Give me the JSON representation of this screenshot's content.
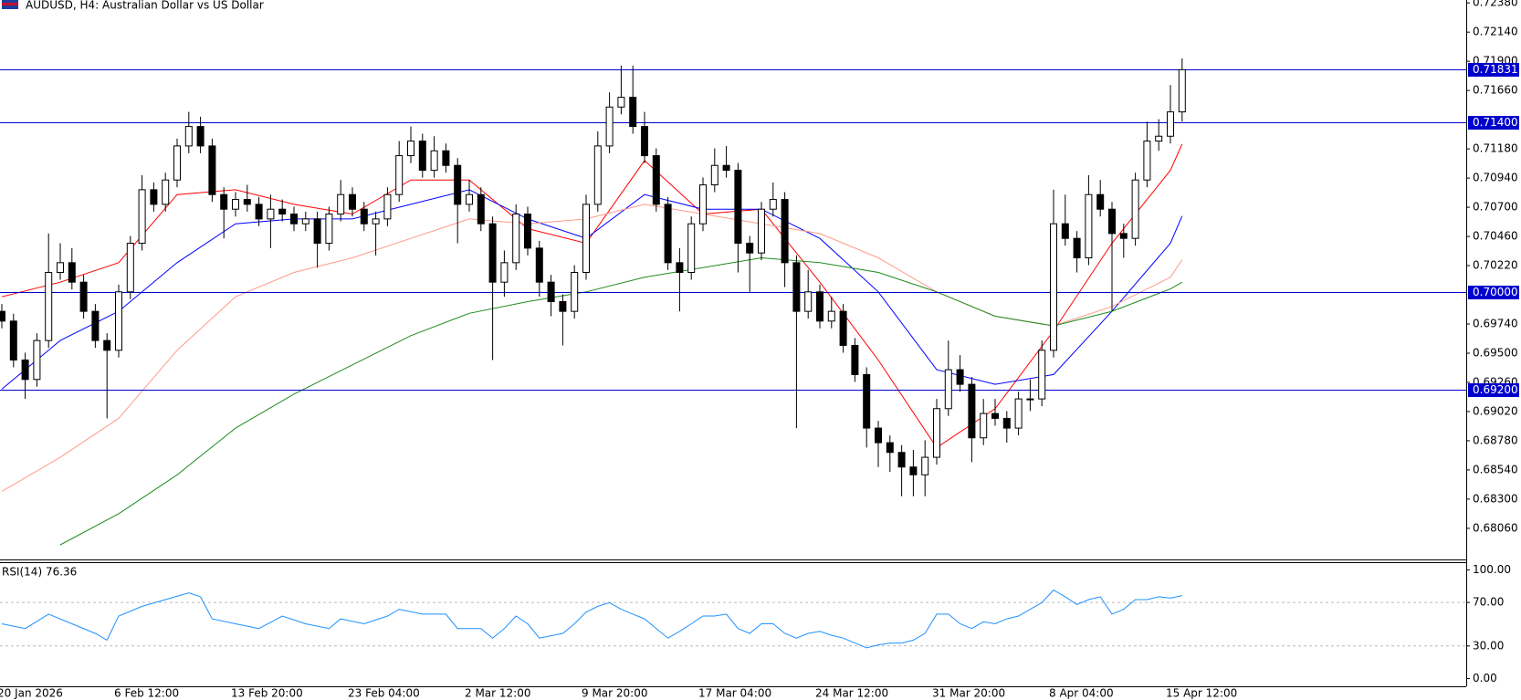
{
  "chart_data": [
    {
      "type": "candlestick",
      "title": "AUDUSD, H4:  Australian Dollar vs US Dollar",
      "categories": [
        "20 Jan 2026",
        null,
        null,
        null,
        null,
        null,
        null,
        null,
        null,
        null,
        "6 Feb 12:00",
        null,
        null,
        null,
        null,
        null,
        null,
        null,
        null,
        null,
        "13 Feb 20:00",
        null,
        null,
        null,
        null,
        null,
        null,
        null,
        null,
        null,
        "23 Feb 04:00",
        null,
        null,
        null,
        null,
        null,
        null,
        null,
        null,
        null,
        "2 Mar 12:00",
        null,
        null,
        null,
        null,
        null,
        null,
        null,
        null,
        null,
        "9 Mar 20:00",
        null,
        null,
        null,
        null,
        null,
        null,
        null,
        null,
        null,
        "17 Mar 04:00",
        null,
        null,
        null,
        null,
        null,
        null,
        null,
        null,
        null,
        "24 Mar 12:00",
        null,
        null,
        null,
        null,
        null,
        null,
        null,
        null,
        null,
        "31 Mar 20:00",
        null,
        null,
        null,
        null,
        null,
        null,
        null,
        null,
        null,
        "8 Apr 04:00",
        null,
        null,
        null,
        null,
        null,
        null,
        null,
        null,
        null,
        "15 Apr 12:00",
        null
      ],
      "open": [
        0.69844,
        0.69764,
        0.69444,
        0.69284,
        0.69604,
        0.70164,
        0.70244,
        0.70084,
        0.69844,
        0.69604,
        0.69524,
        0.70004,
        0.70404,
        0.70844,
        0.70724,
        0.70924,
        0.71204,
        0.71364,
        0.71204,
        0.70804,
        0.70684,
        0.70764,
        0.70724,
        0.70604,
        0.70684,
        0.70644,
        0.70564,
        0.70604,
        0.70404,
        0.70644,
        0.70804,
        0.70684,
        0.70564,
        0.70604,
        0.70804,
        0.71124,
        0.71244,
        0.71004,
        0.71164,
        0.71044,
        0.70724,
        0.70804,
        0.70564,
        0.70084,
        0.70244,
        0.70644,
        0.70364,
        0.70084,
        0.69924,
        0.69844,
        0.70164,
        0.70724,
        0.71204,
        0.71524,
        0.71604,
        0.71364,
        0.71124,
        0.70724,
        0.70244,
        0.70164,
        0.70564,
        0.70884,
        0.71044,
        0.71004,
        0.70404,
        0.70324,
        0.70684,
        0.70764,
        0.70244,
        0.69844,
        0.70004,
        0.69764,
        0.69844,
        0.69564,
        0.69324,
        0.68884,
        0.68764,
        0.68684,
        0.68564,
        0.685,
        0.68644,
        0.69044,
        0.69364,
        0.69244,
        0.68804,
        0.69004,
        0.68964,
        0.68884,
        0.69124,
        0.69124,
        0.69524,
        0.70564,
        0.70444,
        0.70284,
        0.70804,
        0.70684,
        0.70484,
        0.70444,
        0.70924,
        0.71244,
        0.71284,
        0.71484
      ],
      "high": [
        0.69904,
        0.69824,
        0.69504,
        0.69664,
        0.70484,
        0.70404,
        0.70364,
        0.70144,
        0.69904,
        0.69664,
        0.70064,
        0.70464,
        0.70964,
        0.70904,
        0.70984,
        0.71264,
        0.71484,
        0.71444,
        0.71264,
        0.70864,
        0.70824,
        0.70884,
        0.70784,
        0.70804,
        0.70764,
        0.70704,
        0.70664,
        0.70664,
        0.70704,
        0.70924,
        0.70864,
        0.70744,
        0.70664,
        0.70864,
        0.71244,
        0.71364,
        0.71304,
        0.71284,
        0.71224,
        0.71104,
        0.70924,
        0.70864,
        0.70624,
        0.70344,
        0.70724,
        0.70704,
        0.70424,
        0.70144,
        0.69984,
        0.70224,
        0.70804,
        0.71324,
        0.71644,
        0.71864,
        0.71864,
        0.71484,
        0.71184,
        0.70784,
        0.70364,
        0.70624,
        0.70944,
        0.71184,
        0.71204,
        0.71064,
        0.70464,
        0.70744,
        0.70904,
        0.70824,
        0.70304,
        0.70184,
        0.70064,
        0.69964,
        0.69904,
        0.69624,
        0.69384,
        0.68944,
        0.68824,
        0.68744,
        0.68704,
        0.68784,
        0.69124,
        0.69604,
        0.69484,
        0.69304,
        0.69124,
        0.69124,
        0.69024,
        0.69184,
        0.69284,
        0.69604,
        0.70844,
        0.70804,
        0.70504,
        0.70964,
        0.70924,
        0.70744,
        0.70564,
        0.70984,
        0.71404,
        0.71424,
        0.71704,
        0.71924
      ],
      "low": [
        0.69704,
        0.69384,
        0.69124,
        0.69224,
        0.69544,
        0.70104,
        0.70024,
        0.69784,
        0.69544,
        0.68964,
        0.69464,
        0.69944,
        0.70344,
        0.70664,
        0.70664,
        0.70864,
        0.71144,
        0.71144,
        0.70744,
        0.70444,
        0.70624,
        0.70664,
        0.70544,
        0.70364,
        0.70584,
        0.70504,
        0.70504,
        0.70204,
        0.70344,
        0.70584,
        0.70624,
        0.70504,
        0.70304,
        0.70544,
        0.70744,
        0.71064,
        0.70944,
        0.70944,
        0.70984,
        0.70404,
        0.70664,
        0.70504,
        0.69444,
        0.69964,
        0.70184,
        0.70304,
        0.69964,
        0.69804,
        0.69564,
        0.69784,
        0.70104,
        0.70664,
        0.71144,
        0.71464,
        0.71304,
        0.71064,
        0.70664,
        0.70184,
        0.69844,
        0.70104,
        0.70504,
        0.70824,
        0.70944,
        0.70164,
        0.70004,
        0.70264,
        0.70624,
        0.70044,
        0.68884,
        0.69784,
        0.69704,
        0.69704,
        0.69504,
        0.69264,
        0.68724,
        0.68564,
        0.68524,
        0.68324,
        0.68324,
        0.68324,
        0.68584,
        0.68984,
        0.69184,
        0.68604,
        0.68744,
        0.68904,
        0.68764,
        0.68824,
        0.69024,
        0.69064,
        0.69464,
        0.70384,
        0.70164,
        0.70224,
        0.70624,
        0.69844,
        0.70284,
        0.70384,
        0.70864,
        0.71164,
        0.71224,
        0.71404
      ],
      "close": [
        0.69764,
        0.69444,
        0.69284,
        0.69604,
        0.70164,
        0.70244,
        0.70084,
        0.69844,
        0.69604,
        0.69524,
        0.70004,
        0.70404,
        0.70844,
        0.70724,
        0.70924,
        0.71204,
        0.71364,
        0.71204,
        0.70804,
        0.70684,
        0.70764,
        0.70724,
        0.70604,
        0.70684,
        0.70644,
        0.70564,
        0.70604,
        0.70404,
        0.70644,
        0.70804,
        0.70684,
        0.70564,
        0.70604,
        0.70804,
        0.71124,
        0.71244,
        0.71004,
        0.71164,
        0.71044,
        0.70724,
        0.70804,
        0.70564,
        0.70084,
        0.70244,
        0.70644,
        0.70364,
        0.70084,
        0.69924,
        0.69844,
        0.70164,
        0.70724,
        0.71204,
        0.71524,
        0.71604,
        0.71364,
        0.71124,
        0.70724,
        0.70244,
        0.70164,
        0.70564,
        0.70884,
        0.71044,
        0.71004,
        0.70404,
        0.70324,
        0.70684,
        0.70764,
        0.70244,
        0.69844,
        0.70004,
        0.69764,
        0.69844,
        0.69564,
        0.69324,
        0.68884,
        0.68764,
        0.68684,
        0.68564,
        0.685,
        0.68644,
        0.69044,
        0.69364,
        0.69244,
        0.68804,
        0.69004,
        0.68964,
        0.68884,
        0.69124,
        0.69124,
        0.69524,
        0.70564,
        0.70444,
        0.70284,
        0.70804,
        0.70684,
        0.70484,
        0.70444,
        0.70924,
        0.71244,
        0.71284,
        0.71484,
        0.71831
      ],
      "up_color": "#ffffff",
      "down_color": "#000000",
      "wick_color": "#000000",
      "series": [
        {
          "color": "#ff0000",
          "x": [
            0,
            5,
            10,
            15,
            20,
            25,
            30,
            35,
            40,
            45,
            50,
            55,
            60,
            65,
            70,
            75,
            80,
            85,
            90,
            95,
            100,
            101
          ],
          "values": [
            0.69964,
            0.70084,
            0.70244,
            0.70804,
            0.70844,
            0.70724,
            0.70644,
            0.70924,
            0.70924,
            0.70524,
            0.70404,
            0.71084,
            0.70644,
            0.70684,
            0.70084,
            0.69444,
            0.68724,
            0.69044,
            0.69684,
            0.70404,
            0.71004,
            0.7122
          ]
        },
        {
          "color": "#0000ff",
          "x": [
            0,
            5,
            10,
            15,
            20,
            25,
            30,
            35,
            40,
            45,
            50,
            55,
            60,
            65,
            70,
            75,
            80,
            85,
            90,
            95,
            100,
            101
          ],
          "values": [
            0.69204,
            0.69604,
            0.69844,
            0.70244,
            0.70564,
            0.70604,
            0.70604,
            0.70724,
            0.70844,
            0.70604,
            0.70444,
            0.70804,
            0.70684,
            0.70684,
            0.70444,
            0.70004,
            0.69364,
            0.69244,
            0.69324,
            0.69844,
            0.70404,
            0.70628
          ]
        },
        {
          "color": "#ff9a8a",
          "x": [
            0,
            5,
            10,
            15,
            20,
            25,
            30,
            35,
            40,
            45,
            50,
            55,
            60,
            65,
            70,
            75,
            80,
            85,
            90,
            95,
            100,
            101
          ],
          "values": [
            0.68364,
            0.68644,
            0.68964,
            0.69524,
            0.69964,
            0.70164,
            0.70284,
            0.70444,
            0.70604,
            0.70564,
            0.70604,
            0.70724,
            0.70644,
            0.70564,
            0.70484,
            0.70284,
            0.70004,
            0.69804,
            0.69724,
            0.69884,
            0.70124,
            0.70268
          ]
        },
        {
          "color": "#1e8c1e",
          "x": [
            5,
            10,
            15,
            20,
            25,
            30,
            35,
            40,
            45,
            50,
            55,
            60,
            65,
            70,
            75,
            80,
            85,
            90,
            95,
            100,
            101
          ],
          "values": [
            0.67924,
            0.6818,
            0.685,
            0.68884,
            0.69164,
            0.69404,
            0.69644,
            0.69828,
            0.69924,
            0.70004,
            0.70124,
            0.70204,
            0.70284,
            0.70244,
            0.70164,
            0.70004,
            0.69804,
            0.69724,
            0.69844,
            0.70028,
            0.70084
          ]
        }
      ],
      "levels": [
        {
          "value": 0.71831,
          "label": "0.71831"
        },
        {
          "value": 0.714,
          "label": "0.71400"
        },
        {
          "value": 0.7,
          "label": "0.70000"
        },
        {
          "value": 0.692,
          "label": "0.69200"
        }
      ],
      "level_color": "#0000cd",
      "ylim": [
        0.67804,
        0.72404
      ],
      "yticks": [
        {
          "value": 0.7238,
          "label": "0.72380"
        },
        {
          "value": 0.7214,
          "label": "0.72140"
        },
        {
          "value": 0.719,
          "label": "0.71900"
        },
        {
          "value": 0.7166,
          "label": "0.71660"
        },
        {
          "value": 0.7118,
          "label": "0.71180"
        },
        {
          "value": 0.7094,
          "label": "0.70940"
        },
        {
          "value": 0.707,
          "label": "0.70700"
        },
        {
          "value": 0.7046,
          "label": "0.70460"
        },
        {
          "value": 0.7022,
          "label": "0.70220"
        },
        {
          "value": 0.6974,
          "label": "0.69740"
        },
        {
          "value": 0.695,
          "label": "0.69500"
        },
        {
          "value": 0.6926,
          "label": "0.69260"
        },
        {
          "value": 0.6902,
          "label": "0.69020"
        },
        {
          "value": 0.6878,
          "label": "0.68780"
        },
        {
          "value": 0.6854,
          "label": "0.68540"
        },
        {
          "value": 0.683,
          "label": "0.68300"
        },
        {
          "value": 0.6806,
          "label": "0.68060"
        }
      ],
      "grid": false
    },
    {
      "type": "line",
      "title": "RSI(14) 76.36",
      "color": "#1e90ff",
      "x": [
        0,
        2,
        4,
        6,
        8,
        9,
        10,
        12,
        14,
        16,
        17,
        18,
        20,
        22,
        24,
        26,
        28,
        29,
        31,
        33,
        34,
        36,
        38,
        39,
        41,
        42,
        43,
        44,
        45,
        46,
        48,
        49,
        50,
        51,
        52,
        53,
        54,
        55,
        56,
        57,
        58,
        59,
        60,
        61,
        62,
        63,
        64,
        65,
        66,
        67,
        68,
        69,
        70,
        71,
        72,
        73,
        74,
        75,
        76,
        77,
        78,
        79,
        80,
        81,
        82,
        83,
        84,
        85,
        86,
        87,
        88,
        89,
        90,
        91,
        92,
        93,
        94,
        95,
        96,
        97,
        98,
        99,
        100,
        101
      ],
      "values": [
        50.4,
        46.0,
        59.3,
        50.4,
        41.6,
        35.4,
        57.5,
        66.4,
        72.6,
        78.8,
        75.2,
        54.9,
        50.4,
        46.0,
        57.5,
        50.4,
        46.0,
        54.9,
        50.4,
        57.5,
        63.7,
        59.3,
        59.3,
        46.0,
        46.0,
        37.2,
        46.0,
        57.5,
        50.4,
        37.2,
        41.6,
        50.4,
        61.1,
        66.4,
        69.9,
        63.7,
        59.3,
        54.9,
        46.0,
        37.2,
        43.4,
        50.4,
        57.5,
        57.5,
        59.3,
        46.0,
        41.6,
        50.4,
        50.4,
        41.6,
        37.2,
        41.6,
        43.4,
        39.8,
        37.2,
        32.7,
        28.3,
        31.0,
        32.7,
        32.7,
        35.4,
        41.6,
        59.3,
        59.3,
        50.4,
        46.0,
        52.2,
        50.4,
        54.9,
        57.5,
        63.7,
        69.9,
        81.4,
        75.2,
        68.1,
        72.6,
        75.2,
        59.3,
        63.7,
        72.6,
        72.6,
        75.2,
        74.0,
        76.36
      ],
      "ylim": [
        -7.1,
        106.2
      ],
      "yticks": [
        {
          "value": 100,
          "label": "100.00"
        },
        {
          "value": 70,
          "label": "70.00"
        },
        {
          "value": 30,
          "label": "30.00"
        },
        {
          "value": 0,
          "label": "0.00"
        }
      ],
      "grid": true
    }
  ]
}
